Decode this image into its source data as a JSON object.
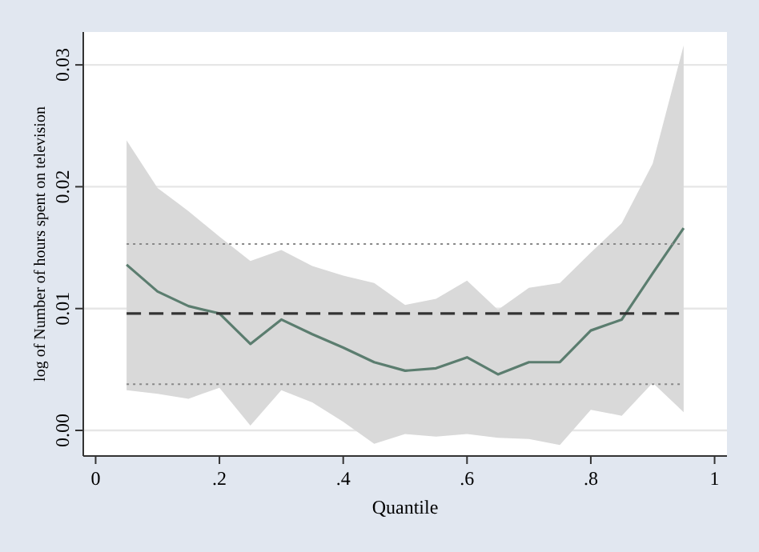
{
  "chart_data": {
    "type": "line",
    "xlabel": "Quantile",
    "ylabel": "log of Number of hours spent on television",
    "x": [
      0.05,
      0.1,
      0.15,
      0.2,
      0.25,
      0.3,
      0.35,
      0.4,
      0.45,
      0.5,
      0.55,
      0.6,
      0.65,
      0.7,
      0.75,
      0.8,
      0.85,
      0.9,
      0.95
    ],
    "series": [
      {
        "color": "#5b7d6f",
        "values": [
          0.0136,
          0.0114,
          0.0102,
          0.0096,
          0.0071,
          0.0091,
          0.0079,
          0.0068,
          0.0056,
          0.0049,
          0.0051,
          0.006,
          0.0046,
          0.0056,
          0.0056,
          0.0082,
          0.0091,
          0.0129,
          0.0166
        ],
        "lower": [
          0.0033,
          0.003,
          0.0026,
          0.0035,
          0.0004,
          0.0033,
          0.0023,
          0.0007,
          -0.0011,
          -0.0003,
          -0.0005,
          -0.0003,
          -0.0006,
          -0.0007,
          -0.0012,
          0.0017,
          0.0012,
          0.0039,
          0.0015
        ],
        "upper": [
          0.0238,
          0.0199,
          0.018,
          0.0159,
          0.0139,
          0.0148,
          0.0135,
          0.0127,
          0.0121,
          0.0103,
          0.0108,
          0.0123,
          0.0099,
          0.0117,
          0.0121,
          0.0146,
          0.017,
          0.0219,
          0.0316
        ]
      }
    ],
    "ref_lines": [
      {
        "axis": "y",
        "value": 0.0096,
        "line_style": "dashed",
        "color": "#333333"
      },
      {
        "axis": "y",
        "value": 0.0153,
        "line_style": "dotted",
        "color": "#888888"
      },
      {
        "axis": "y",
        "value": 0.0038,
        "line_style": "dotted",
        "color": "#888888"
      }
    ],
    "xlim": [
      -0.02,
      1.02
    ],
    "xticks": [
      0,
      {
        "value": 0.2,
        "label": ".2"
      },
      {
        "value": 0.4,
        "label": ".4"
      },
      {
        "value": 0.6,
        "label": ".6"
      },
      {
        "value": 0.8,
        "label": ".8"
      },
      1
    ],
    "ylim": [
      -0.0021,
      0.0327
    ],
    "yticks": [
      {
        "value": 0,
        "label": "0.00"
      },
      {
        "value": 0.01,
        "label": "0.01"
      },
      {
        "value": 0.02,
        "label": "0.02"
      },
      {
        "value": 0.03,
        "label": "0.03"
      }
    ],
    "grid": "y",
    "marker": "none",
    "line_style": "solid"
  }
}
